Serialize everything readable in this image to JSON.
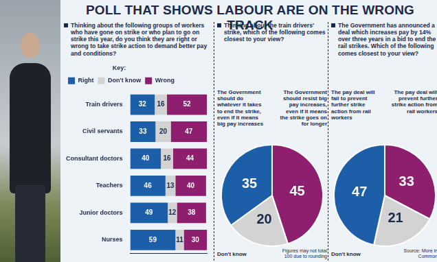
{
  "title": "POLL THAT SHOWS LABOUR ARE ON THE WRONG TRACK",
  "note": "Figures may not total 100 due to rounding",
  "source": "Source: More in Common",
  "chart_data": [
    {
      "type": "bar",
      "orientation": "horizontal",
      "stacked": true,
      "title": "Thinking about the following groups of workers who have gone on strike or who plan to go on strike this year, do you think they are right or wrong to take strike action to demand better pay and conditions?",
      "categories": [
        "Train drivers",
        "Civil servants",
        "Consultant doctors",
        "Teachers",
        "Junior doctors",
        "Nurses"
      ],
      "series": [
        {
          "name": "Right",
          "color": "#1c5ea8",
          "values": [
            32,
            33,
            40,
            46,
            49,
            59
          ]
        },
        {
          "name": "Don't know",
          "color": "#d3d3d3",
          "values": [
            16,
            20,
            16,
            13,
            12,
            11
          ]
        },
        {
          "name": "Wrong",
          "color": "#8e1f6e",
          "values": [
            52,
            47,
            44,
            40,
            38,
            30
          ]
        }
      ],
      "xlim": [
        0,
        100
      ],
      "legend": "top",
      "legend_title": "Key:",
      "data_labels": true,
      "tick_labels": "y",
      "grid": false
    },
    {
      "type": "pie",
      "title": "Thinking about the train drivers' strike, which of the following comes closest to your view?",
      "categories": [
        "The Government should resist big pay increases, even if it means the strike goes on for longer",
        "Don't know",
        "The Government should do whatever it takes to end the strike, even if it means big pay increases"
      ],
      "values": [
        45,
        20,
        35
      ],
      "colors": [
        "#8e1f6e",
        "#d3d3d3",
        "#1c5ea8"
      ],
      "data_labels": true
    },
    {
      "type": "pie",
      "title": "The Government has announced a deal which increases pay by 14% over three years in a bid to end the rail strikes. Which of the following comes closest to your view?",
      "categories": [
        "The pay deal will prevent further strike action from rail workers",
        "Don't know",
        "The pay deal will fail to prevent further strike action from rail workers"
      ],
      "values": [
        33,
        21,
        47
      ],
      "colors": [
        "#8e1f6e",
        "#d3d3d3",
        "#1c5ea8"
      ],
      "data_labels": true
    }
  ]
}
